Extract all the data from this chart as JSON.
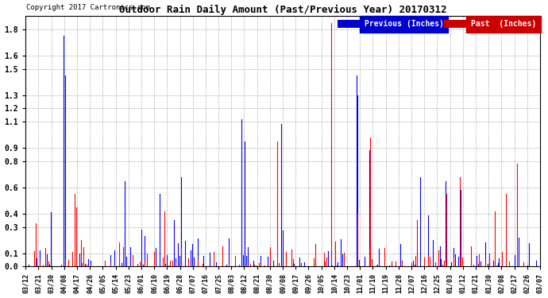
{
  "title": "Outdoor Rain Daily Amount (Past/Previous Year) 20170312",
  "copyright": "Copyright 2017 Cartronics.com",
  "legend_previous": "Previous (Inches)",
  "legend_past": "Past  (Inches)",
  "legend_prev_bg": "#0000cc",
  "legend_past_bg": "#cc0000",
  "yticks": [
    0.0,
    0.1,
    0.3,
    0.4,
    0.6,
    0.8,
    0.9,
    1.1,
    1.2,
    1.3,
    1.5,
    1.6,
    1.8
  ],
  "ylim": [
    0.0,
    1.9
  ],
  "background_color": "#ffffff",
  "grid_color": "#aaaaaa",
  "line_color_previous": "#0000ff",
  "line_color_past": "#ff0000",
  "xtick_labels": [
    "03/12",
    "03/21",
    "03/30",
    "04/08",
    "04/17",
    "04/26",
    "05/05",
    "05/14",
    "05/23",
    "06/01",
    "06/10",
    "06/19",
    "06/28",
    "07/07",
    "07/16",
    "07/25",
    "08/03",
    "08/12",
    "08/21",
    "08/30",
    "09/08",
    "09/17",
    "09/26",
    "10/05",
    "10/14",
    "10/23",
    "11/01",
    "11/10",
    "11/19",
    "11/28",
    "12/07",
    "12/16",
    "12/25",
    "01/03",
    "01/12",
    "01/21",
    "01/30",
    "02/08",
    "02/17",
    "02/26",
    "03/07"
  ],
  "n_points": 365,
  "figsize": [
    6.9,
    3.75
  ],
  "dpi": 100
}
